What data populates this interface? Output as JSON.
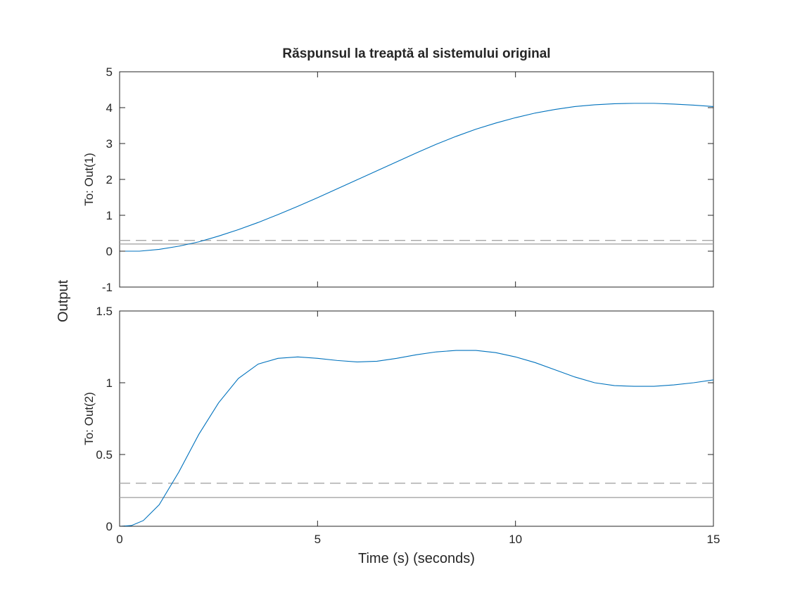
{
  "chart_data": {
    "type": "line",
    "title": "Răspunsul la treaptă al sistemului original",
    "xlabel": "Time (s) (seconds)",
    "ylabel": "Output",
    "line_color": "#0072bd",
    "reference_color": "#a6a6a6",
    "xlim": [
      0,
      15
    ],
    "x_ticks": [
      0,
      5,
      10,
      15
    ],
    "x_tick_labels": [
      "0",
      "5",
      "10",
      "15"
    ],
    "grid": false,
    "legend": "none",
    "subplots": [
      {
        "ylabel": "To: Out(1)",
        "ylim": [
          -1,
          5
        ],
        "y_ticks": [
          -1,
          0,
          1,
          2,
          3,
          4,
          5
        ],
        "y_tick_labels": [
          "-1",
          "0",
          "1",
          "2",
          "3",
          "4",
          "5"
        ],
        "reference_lines": [
          {
            "y": 0.3,
            "style": "dashed"
          },
          {
            "y": 0.2,
            "style": "solid"
          }
        ],
        "series": [
          {
            "x": [
              0,
              0.5,
              1,
              1.5,
              2,
              2.5,
              3,
              3.5,
              4,
              4.5,
              5,
              5.5,
              6,
              6.5,
              7,
              7.5,
              8,
              8.5,
              9,
              9.5,
              10,
              10.5,
              11,
              11.5,
              12,
              12.5,
              13,
              13.5,
              14,
              14.5,
              15
            ],
            "y": [
              0,
              0,
              0.05,
              0.14,
              0.26,
              0.42,
              0.6,
              0.8,
              1.02,
              1.25,
              1.49,
              1.74,
              1.99,
              2.24,
              2.49,
              2.74,
              2.98,
              3.2,
              3.4,
              3.57,
              3.72,
              3.85,
              3.95,
              4.03,
              4.08,
              4.11,
              4.12,
              4.12,
              4.1,
              4.07,
              4.03
            ]
          }
        ]
      },
      {
        "ylabel": "To: Out(2)",
        "ylim": [
          0,
          1.5
        ],
        "y_ticks": [
          0,
          0.5,
          1,
          1.5
        ],
        "y_tick_labels": [
          "0",
          "0.5",
          "1",
          "1.5"
        ],
        "reference_lines": [
          {
            "y": 0.3,
            "style": "dashed"
          },
          {
            "y": 0.2,
            "style": "solid"
          }
        ],
        "series": [
          {
            "x": [
              0,
              0.3,
              0.6,
              1,
              1.5,
              2,
              2.5,
              3,
              3.5,
              4,
              4.5,
              5,
              5.5,
              6,
              6.5,
              7,
              7.5,
              8,
              8.5,
              9,
              9.5,
              10,
              10.5,
              11,
              11.5,
              12,
              12.5,
              13,
              13.5,
              14,
              14.5,
              15
            ],
            "y": [
              0,
              0.005,
              0.04,
              0.15,
              0.38,
              0.64,
              0.86,
              1.03,
              1.13,
              1.17,
              1.18,
              1.17,
              1.155,
              1.145,
              1.15,
              1.17,
              1.195,
              1.215,
              1.225,
              1.225,
              1.21,
              1.18,
              1.14,
              1.09,
              1.04,
              1.0,
              0.98,
              0.975,
              0.975,
              0.985,
              1.0,
              1.02
            ]
          }
        ]
      }
    ]
  }
}
